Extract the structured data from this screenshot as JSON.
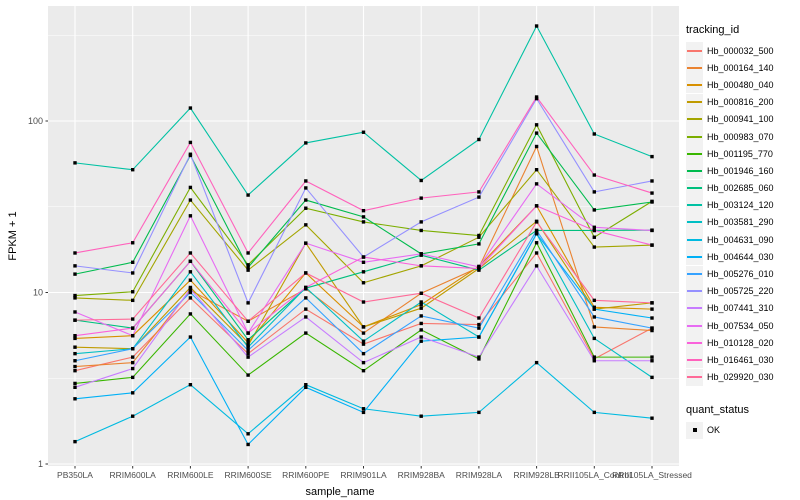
{
  "chart_data": {
    "type": "line",
    "title": "",
    "xlabel": "sample_name",
    "ylabel": "FPKM + 1",
    "y_scale": "log10",
    "yticks": [
      1,
      10,
      100
    ],
    "ylim": [
      1.2,
      470
    ],
    "grid": "on",
    "panel_bg": "#EBEBEB",
    "gridline_color": "#FFFFFF",
    "tick_label_color": "#4D4D4D",
    "point_color": "#000000",
    "legend_title": "tracking_id",
    "quant_legend_title": "quant_status",
    "quant_ok_label": "OK",
    "categories": [
      "PB350LA",
      "RRIM600LA",
      "RRIM600LE",
      "RRIM600SE",
      "RRIM600PE",
      "RRIM901LA",
      "RRIM928BA",
      "RRIM928LA",
      "RRIM928LB",
      "RRII105LA_Control",
      "RRII105LA_Stressed"
    ],
    "series": [
      {
        "name": "Hb_000032_500",
        "color": "#F8766D",
        "values": [
          3.5,
          4.2,
          9.3,
          4.4,
          8.0,
          5.0,
          6.6,
          6.5,
          17,
          4.1,
          6.2
        ]
      },
      {
        "name": "Hb_000164_140",
        "color": "#EA8331",
        "values": [
          3.7,
          3.9,
          10.3,
          6.8,
          10.5,
          5.8,
          9.9,
          14.0,
          71,
          6.3,
          6.0
        ]
      },
      {
        "name": "Hb_000480_040",
        "color": "#D89000",
        "values": [
          5.4,
          5.6,
          11.8,
          5.1,
          13.0,
          6.3,
          8.5,
          14.2,
          32,
          8.2,
          8.0
        ]
      },
      {
        "name": "Hb_000816_200",
        "color": "#C09B00",
        "values": [
          4.8,
          4.7,
          10.7,
          4.9,
          19.4,
          6.3,
          8.1,
          13.8,
          26,
          8.0,
          8.7
        ]
      },
      {
        "name": "Hb_000941_100",
        "color": "#A3A500",
        "values": [
          9.3,
          9.0,
          34.6,
          13.5,
          24.8,
          11.4,
          14.3,
          21.0,
          52,
          18.4,
          18.9
        ]
      },
      {
        "name": "Hb_000983_070",
        "color": "#7CAE00",
        "values": [
          9.6,
          10.1,
          41.0,
          14.5,
          31.0,
          25.8,
          23.0,
          21.5,
          95,
          21.0,
          34.0
        ]
      },
      {
        "name": "Hb_001195_770",
        "color": "#39B600",
        "values": [
          2.95,
          3.2,
          7.5,
          3.3,
          5.8,
          3.5,
          6.05,
          4.1,
          19.5,
          4.2,
          4.2
        ]
      },
      {
        "name": "Hb_001946_160",
        "color": "#00BB4E",
        "values": [
          12.8,
          15.0,
          63.0,
          14.0,
          34.6,
          27.6,
          16.8,
          19.2,
          85,
          30.3,
          33.7
        ]
      },
      {
        "name": "Hb_002685_060",
        "color": "#00BF7D",
        "values": [
          6.9,
          6.2,
          15.2,
          5.3,
          10.6,
          13.2,
          16.5,
          13.5,
          23,
          23.0,
          23.1
        ]
      },
      {
        "name": "Hb_003124_120",
        "color": "#00C1A3",
        "values": [
          57,
          52,
          119,
          37,
          74.5,
          86,
          45,
          78,
          358,
          84,
          62
        ]
      },
      {
        "name": "Hb_003581_290",
        "color": "#00BFC4",
        "values": [
          4.4,
          4.7,
          13.2,
          4.8,
          10.7,
          5.2,
          8.8,
          5.5,
          22,
          5.4,
          3.2
        ]
      },
      {
        "name": "Hb_004631_090",
        "color": "#00BAE0",
        "values": [
          1.35,
          1.9,
          2.9,
          1.5,
          2.9,
          2.1,
          1.9,
          2.0,
          3.9,
          2.0,
          1.85
        ]
      },
      {
        "name": "Hb_004644_030",
        "color": "#00B0F6",
        "values": [
          2.4,
          2.6,
          5.5,
          1.3,
          2.8,
          2.0,
          5.2,
          5.5,
          22,
          8.0,
          7.1
        ]
      },
      {
        "name": "Hb_005276_010",
        "color": "#35A2FF",
        "values": [
          4.0,
          4.7,
          10.0,
          4.6,
          9.3,
          4.4,
          7.3,
          6.2,
          23,
          7.2,
          6.2
        ]
      },
      {
        "name": "Hb_005725_220",
        "color": "#9590FF",
        "values": [
          14.3,
          13.0,
          64,
          8.7,
          40.7,
          16.1,
          25.8,
          36,
          135,
          38.6,
          44.7
        ]
      },
      {
        "name": "Hb_007441_310",
        "color": "#C77CFF",
        "values": [
          2.8,
          3.6,
          10.5,
          4.2,
          7.2,
          3.9,
          5.5,
          4.2,
          14.3,
          4.0,
          4.0
        ]
      },
      {
        "name": "Hb_007534_050",
        "color": "#E76BF3",
        "values": [
          7.7,
          5.6,
          28,
          5.8,
          19.4,
          15.0,
          16.8,
          14.1,
          43,
          24,
          23
        ]
      },
      {
        "name": "Hb_010128_020",
        "color": "#FA62DB",
        "values": [
          5.6,
          6.2,
          15.2,
          5.8,
          10.7,
          16.1,
          14.3,
          13.8,
          32,
          23,
          18.9
        ]
      },
      {
        "name": "Hb_016461_030",
        "color": "#FF62BC",
        "values": [
          17,
          19.5,
          75,
          17,
          44.7,
          30,
          35.5,
          38.6,
          138,
          48.4,
          38
        ]
      },
      {
        "name": "Hb_029920_030",
        "color": "#FF6A98",
        "values": [
          6.9,
          7.0,
          17,
          6.8,
          13.0,
          8.8,
          9.9,
          7.1,
          25.8,
          9.0,
          8.7
        ]
      }
    ],
    "legend_position": "right"
  }
}
